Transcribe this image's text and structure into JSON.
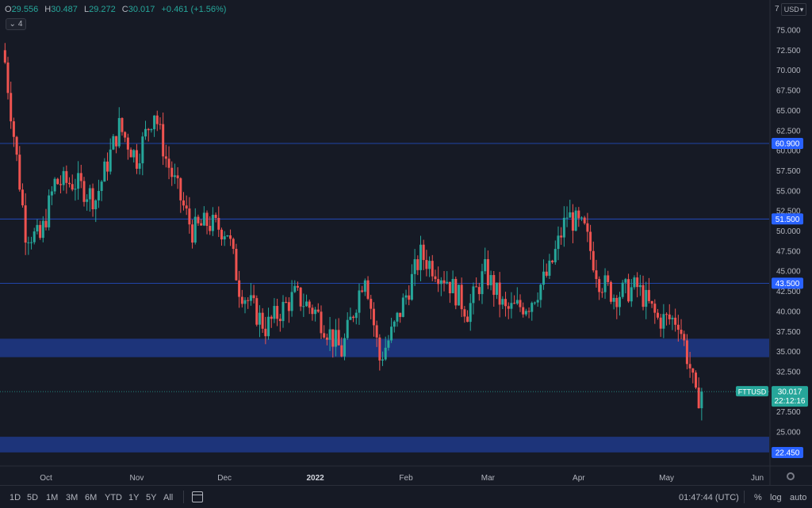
{
  "header": {
    "open_label": "O",
    "open": "29.556",
    "high_label": "H",
    "high": "30.487",
    "low_label": "L",
    "low": "29.272",
    "close_label": "C",
    "close": "30.017",
    "change": "+0.461 (+1.56%)",
    "indicators_count": "4"
  },
  "axis_top": {
    "seven": "7",
    "currency": "USD"
  },
  "colors": {
    "background": "#161a25",
    "up": "#26a69a",
    "down": "#ef5350",
    "level": "#2962ff",
    "zone": "#1e3a8a"
  },
  "chart_data": {
    "type": "candlestick",
    "symbol": "FTTUSD",
    "price_ticks": [
      "75.000",
      "72.500",
      "70.000",
      "67.500",
      "65.000",
      "62.500",
      "60.000",
      "57.500",
      "55.000",
      "52.500",
      "50.000",
      "47.500",
      "45.000",
      "42.500",
      "40.000",
      "37.500",
      "35.000",
      "32.500",
      "30.000",
      "27.500",
      "25.000"
    ],
    "ylim": [
      20.0,
      77.0
    ],
    "x_ticks": [
      "Oct",
      "Nov",
      "Dec",
      "2022",
      "Feb",
      "Mar",
      "Apr",
      "May",
      "Jun"
    ],
    "levels": [
      {
        "value": 60.9,
        "label": "60.900"
      },
      {
        "value": 51.5,
        "label": "51.500"
      },
      {
        "value": 43.5,
        "label": "43.500"
      }
    ],
    "zones": [
      {
        "from": 34.3,
        "to": 36.6
      },
      {
        "from": 22.45,
        "to": 24.4,
        "label": "22.450"
      }
    ],
    "last_price": {
      "value": 30.017,
      "label": "30.017",
      "countdown": "22:12:16",
      "symbol": "FTTUSD"
    },
    "anchors": [
      {
        "date": "2021-09-17",
        "v": 71
      },
      {
        "date": "2021-09-20",
        "v": 62
      },
      {
        "date": "2021-09-24",
        "v": 50
      },
      {
        "date": "2021-09-29",
        "v": 49
      },
      {
        "date": "2021-10-04",
        "v": 56
      },
      {
        "date": "2021-10-11",
        "v": 56
      },
      {
        "date": "2021-10-18",
        "v": 54
      },
      {
        "date": "2021-10-26",
        "v": 63
      },
      {
        "date": "2021-11-01",
        "v": 59
      },
      {
        "date": "2021-11-07",
        "v": 65
      },
      {
        "date": "2021-11-11",
        "v": 59
      },
      {
        "date": "2021-11-20",
        "v": 50
      },
      {
        "date": "2021-11-25",
        "v": 51
      },
      {
        "date": "2021-12-02",
        "v": 50
      },
      {
        "date": "2021-12-06",
        "v": 43
      },
      {
        "date": "2021-12-15",
        "v": 38
      },
      {
        "date": "2021-12-25",
        "v": 42
      },
      {
        "date": "2022-01-01",
        "v": 40
      },
      {
        "date": "2022-01-10",
        "v": 35
      },
      {
        "date": "2022-01-18",
        "v": 45
      },
      {
        "date": "2022-01-23",
        "v": 34
      },
      {
        "date": "2022-01-28",
        "v": 38
      },
      {
        "date": "2022-02-06",
        "v": 47
      },
      {
        "date": "2022-02-15",
        "v": 44
      },
      {
        "date": "2022-02-22",
        "v": 40
      },
      {
        "date": "2022-02-28",
        "v": 45
      },
      {
        "date": "2022-03-07",
        "v": 40
      },
      {
        "date": "2022-03-15",
        "v": 41
      },
      {
        "date": "2022-03-22",
        "v": 45
      },
      {
        "date": "2022-03-28",
        "v": 52
      },
      {
        "date": "2022-04-03",
        "v": 50
      },
      {
        "date": "2022-04-08",
        "v": 44
      },
      {
        "date": "2022-04-13",
        "v": 42
      },
      {
        "date": "2022-04-21",
        "v": 43
      },
      {
        "date": "2022-04-28",
        "v": 39
      },
      {
        "date": "2022-05-05",
        "v": 39
      },
      {
        "date": "2022-05-09",
        "v": 33
      },
      {
        "date": "2022-05-11",
        "v": 29
      },
      {
        "date": "2022-05-13",
        "v": 30
      }
    ]
  },
  "bottom": {
    "timeframes": [
      "1D",
      "5D",
      "1M",
      "3M",
      "6M",
      "YTD",
      "1Y",
      "5Y",
      "All"
    ],
    "clock": "01:47:44 (UTC)",
    "percent": "%",
    "log": "log",
    "auto": "auto"
  }
}
